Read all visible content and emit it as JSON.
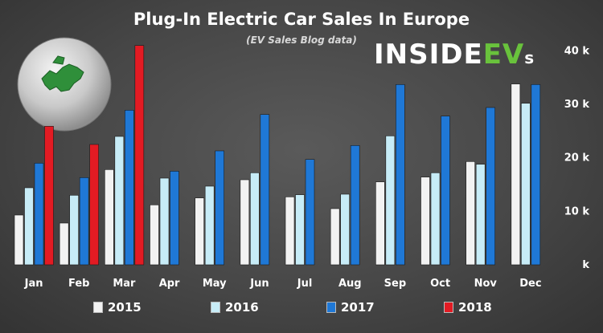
{
  "header": {
    "title": "Plug-In Electric Car Sales In Europe",
    "subtitle": "(EV Sales Blog data)",
    "logo_text": "INSIDEEVs"
  },
  "chart_data": {
    "type": "bar",
    "title": "Plug-In Electric Car Sales In Europe",
    "subtitle": "(EV Sales Blog data)",
    "categories": [
      "Jan",
      "Feb",
      "Mar",
      "Apr",
      "May",
      "Jun",
      "Jul",
      "Aug",
      "Sep",
      "Oct",
      "Nov",
      "Dec"
    ],
    "series": [
      {
        "name": "2015",
        "color": "#f2f2f2",
        "values": [
          9300,
          7800,
          17800,
          11200,
          12500,
          15900,
          12700,
          10500,
          15500,
          16400,
          19300,
          33800
        ]
      },
      {
        "name": "2016",
        "color": "#c7ecf7",
        "values": [
          14400,
          13000,
          24000,
          16200,
          14700,
          17200,
          13100,
          13200,
          24100,
          17200,
          18800,
          30200
        ]
      },
      {
        "name": "2017",
        "color": "#1f78d6",
        "values": [
          19000,
          16300,
          28900,
          17500,
          21300,
          28100,
          19700,
          22300,
          33700,
          27800,
          29400,
          33700
        ]
      },
      {
        "name": "2018",
        "color": "#e31b23",
        "values": [
          25900,
          22500,
          41000,
          null,
          null,
          null,
          null,
          null,
          null,
          null,
          null,
          null
        ]
      }
    ],
    "ylim": [
      0,
      45000
    ],
    "yticks": [
      0,
      10000,
      20000,
      30000,
      40000
    ],
    "ytick_labels": [
      "k",
      "10 k",
      "20 k",
      "30 k",
      "40 k"
    ],
    "y_axis_side": "right",
    "legend_position": "bottom",
    "grid": false
  },
  "legend": {
    "items": [
      "2015",
      "2016",
      "2017",
      "2018"
    ]
  }
}
